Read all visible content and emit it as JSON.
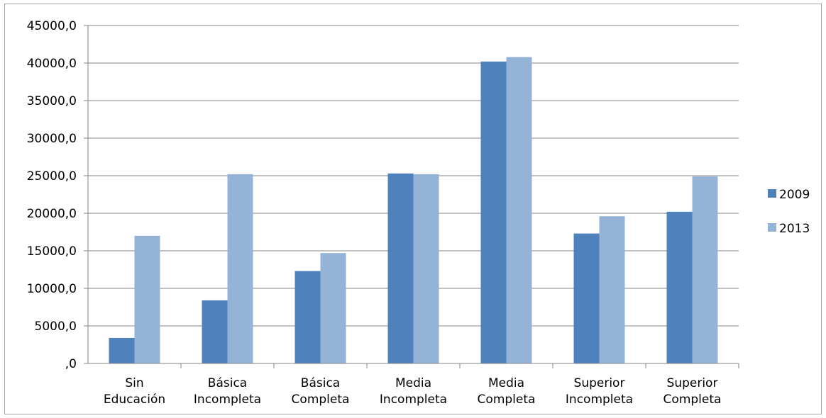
{
  "chart_data": {
    "type": "bar",
    "categories": [
      [
        "Sin",
        "Educación"
      ],
      [
        "Básica",
        "Incompleta"
      ],
      [
        "Básica",
        "Completa"
      ],
      [
        "Media",
        "Incompleta"
      ],
      [
        "Media",
        "Completa"
      ],
      [
        "Superior",
        "Incompleta"
      ],
      [
        "Superior",
        "Completa"
      ]
    ],
    "series": [
      {
        "name": "2009",
        "color": "#4f81bd",
        "values": [
          3400,
          8400,
          12300,
          25300,
          40200,
          17300,
          20200
        ]
      },
      {
        "name": "2013",
        "color": "#95b3d7",
        "values": [
          17000,
          25200,
          14700,
          25200,
          40800,
          19600,
          24900
        ]
      }
    ],
    "yticks": [
      ",0",
      "5000,0",
      "10000,0",
      "15000,0",
      "20000,0",
      "25000,0",
      "30000,0",
      "35000,0",
      "40000,0",
      "45000,0"
    ],
    "ylim": [
      0,
      45000
    ],
    "grid": true,
    "legend": "right",
    "title": "",
    "xlabel": "",
    "ylabel": ""
  }
}
